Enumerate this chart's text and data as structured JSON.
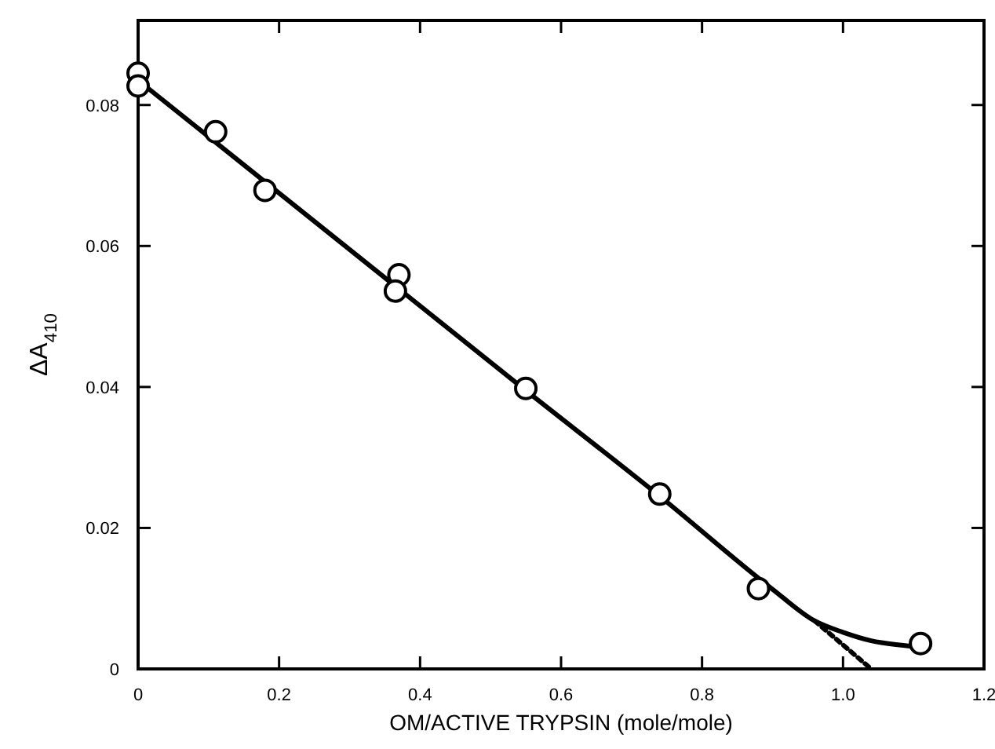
{
  "chart_data": {
    "type": "scatter",
    "xlabel": "OM/ACTIVE TRYPSIN (mole/mole)",
    "ylabel": "ΔA$_{410}$",
    "xlim": [
      0,
      1.2
    ],
    "ylim": [
      0,
      0.092
    ],
    "xticks": [
      0,
      0.2,
      0.4,
      0.6,
      0.8,
      {
        "value": 1,
        "label": "1.0"
      },
      1.2
    ],
    "yticks": [
      0,
      0.02,
      0.04,
      0.06,
      0.08
    ],
    "grid": false,
    "series": [
      {
        "type": "line",
        "color": "#000000",
        "line_style": "solid",
        "marker": "none",
        "x": [
          0,
          0.55,
          0.74,
          0.9,
          0.96,
          1.0,
          1.04,
          1.08,
          1.11
        ],
        "values": [
          0.0835,
          0.0395,
          0.0245,
          0.0113,
          0.0068,
          0.0052,
          0.004,
          0.0034,
          0.0031
        ]
      },
      {
        "type": "line",
        "color": "#000000",
        "line_style": "dotted",
        "marker": "none",
        "x": [
          0.96,
          1.04
        ],
        "values": [
          0.0068,
          0
        ]
      },
      {
        "color": "#000000",
        "marker": "circle",
        "x": [
          0,
          0,
          0.11,
          0.18,
          0.37,
          0.365,
          0.55,
          0.74,
          0.88,
          1.11
        ],
        "values": [
          0.0845,
          0.0827,
          0.0762,
          0.0679,
          0.0559,
          0.0536,
          0.0398,
          0.0248,
          0.0114,
          0.0036
        ]
      }
    ]
  }
}
